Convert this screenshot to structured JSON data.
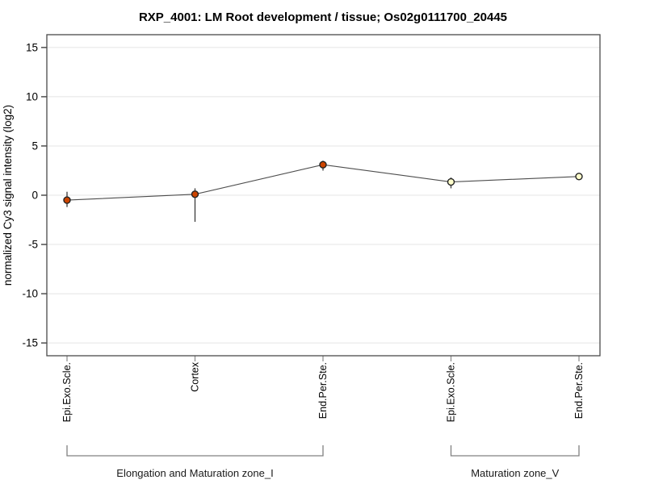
{
  "chart_data": {
    "type": "line",
    "title": "RXP_4001: LM Root development / tissue; Os02g0111700_20445",
    "xlabel": "",
    "ylabel": "normalized Cy3 signal intensity (log2)",
    "ylim": [
      -16.3,
      16.3
    ],
    "yticks": [
      -15,
      -10,
      -5,
      0,
      5,
      10,
      15
    ],
    "grid": "horizontal",
    "legend": "none",
    "categories": [
      "Epi.Exo.Scle.",
      "Cortex",
      "End.Per.Ste.",
      "Epi.Exo.Scle.",
      "End.Per.Ste."
    ],
    "series": [
      {
        "name": "normalized Cy3 signal intensity (log2)",
        "values": [
          -0.5,
          0.1,
          3.1,
          1.35,
          1.9
        ],
        "error_low": [
          -1.2,
          -2.7,
          2.5,
          0.7,
          1.55
        ],
        "error_high": [
          0.35,
          0.7,
          3.5,
          1.8,
          2.2
        ]
      }
    ],
    "point_colors": [
      "#cc4400",
      "#cc4400",
      "#cc4400",
      "#ffffcc",
      "#ffffcc"
    ],
    "groups": [
      {
        "label": "Elongation and Maturation zone_I",
        "from": 0,
        "to": 2
      },
      {
        "label": "Maturation zone_V",
        "from": 3,
        "to": 4
      }
    ],
    "colors": {
      "marker_stroke": "#222222",
      "line": "#4d4d4d",
      "error_bar": "#3a3a3a",
      "grid": "#e4e4e4",
      "border": "#4a4a4a",
      "y_tick": "#222222",
      "x_tick": "#888888",
      "bracket": "#808080"
    }
  }
}
